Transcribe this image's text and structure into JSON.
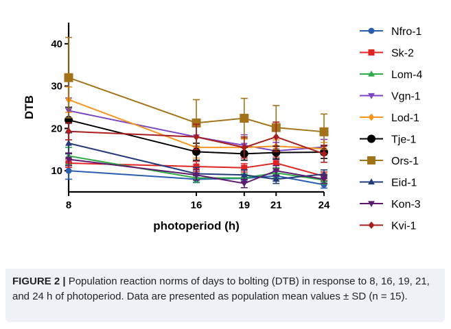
{
  "chart_data": {
    "type": "line",
    "xlabel": "photoperiod (h)",
    "ylabel": "DTB",
    "x": [
      8,
      16,
      19,
      21,
      24
    ],
    "x_tick_labels": [
      "8",
      "16",
      "19",
      "21",
      "24"
    ],
    "y_ticks": [
      10,
      20,
      30,
      40
    ],
    "y_tick_labels": [
      "10",
      "20",
      "30",
      "40"
    ],
    "ylim": [
      5,
      45
    ],
    "xlim": [
      8,
      24
    ],
    "legend_position": "right",
    "grid": false,
    "series": [
      {
        "name": "Nfro-1",
        "color": "#2a5db0",
        "marker": "circle",
        "values": [
          10.0,
          8.0,
          8.2,
          8.8,
          6.7
        ],
        "err": [
          2.0,
          0.8,
          1.0,
          1.2,
          0.8
        ]
      },
      {
        "name": "Sk-2",
        "color": "#e02424",
        "marker": "square",
        "values": [
          11.8,
          11.0,
          10.7,
          11.8,
          8.7
        ],
        "err": [
          1.0,
          1.2,
          1.0,
          1.4,
          1.0
        ]
      },
      {
        "name": "Lom-4",
        "color": "#2eab45",
        "marker": "triangle-up",
        "values": [
          13.5,
          8.3,
          8.3,
          9.5,
          7.8
        ],
        "err": [
          2.0,
          1.0,
          1.0,
          1.2,
          1.0
        ]
      },
      {
        "name": "Vgn-1",
        "color": "#7a45c4",
        "marker": "triangle-down",
        "values": [
          24.2,
          18.0,
          16.0,
          14.7,
          15.6
        ],
        "err": [
          3.0,
          4.0,
          2.5,
          2.0,
          1.8
        ]
      },
      {
        "name": "Lod-1",
        "color": "#f7941d",
        "marker": "diamond",
        "values": [
          26.8,
          15.5,
          15.5,
          15.8,
          15.2
        ],
        "err": [
          3.0,
          2.5,
          2.0,
          1.5,
          1.5
        ]
      },
      {
        "name": "Tje-1",
        "color": "#000000",
        "marker": "circle",
        "values": [
          22.0,
          14.5,
          14.0,
          14.3,
          14.4
        ],
        "err": [
          3.0,
          2.0,
          1.5,
          1.5,
          1.5
        ]
      },
      {
        "name": "Ors-1",
        "color": "#a27319",
        "marker": "square",
        "values": [
          32.0,
          21.3,
          22.4,
          20.2,
          19.2
        ],
        "err": [
          9.5,
          5.5,
          4.7,
          5.2,
          4.2
        ]
      },
      {
        "name": "Eid-1",
        "color": "#233a7a",
        "marker": "triangle-up",
        "values": [
          16.5,
          9.3,
          9.0,
          8.0,
          9.2
        ],
        "err": [
          2.5,
          1.5,
          1.2,
          1.0,
          1.0
        ]
      },
      {
        "name": "Kon-3",
        "color": "#5e1a6e",
        "marker": "triangle-down",
        "values": [
          12.7,
          9.0,
          7.0,
          10.0,
          8.0
        ],
        "err": [
          1.5,
          1.2,
          1.0,
          1.2,
          1.0
        ]
      },
      {
        "name": "Kvi-1",
        "color": "#a81d1d",
        "marker": "diamond",
        "values": [
          19.3,
          18.0,
          15.5,
          18.0,
          14.0
        ],
        "err": [
          2.0,
          3.0,
          2.5,
          3.5,
          2.0
        ]
      }
    ]
  },
  "caption": {
    "label": "FIGURE 2 |",
    "text": " Population reaction norms of days to bolting (DTB) in response to 8, 16, 19, 21, and 24 h of photoperiod. Data are presented as population mean values ± SD (n = 15)."
  }
}
